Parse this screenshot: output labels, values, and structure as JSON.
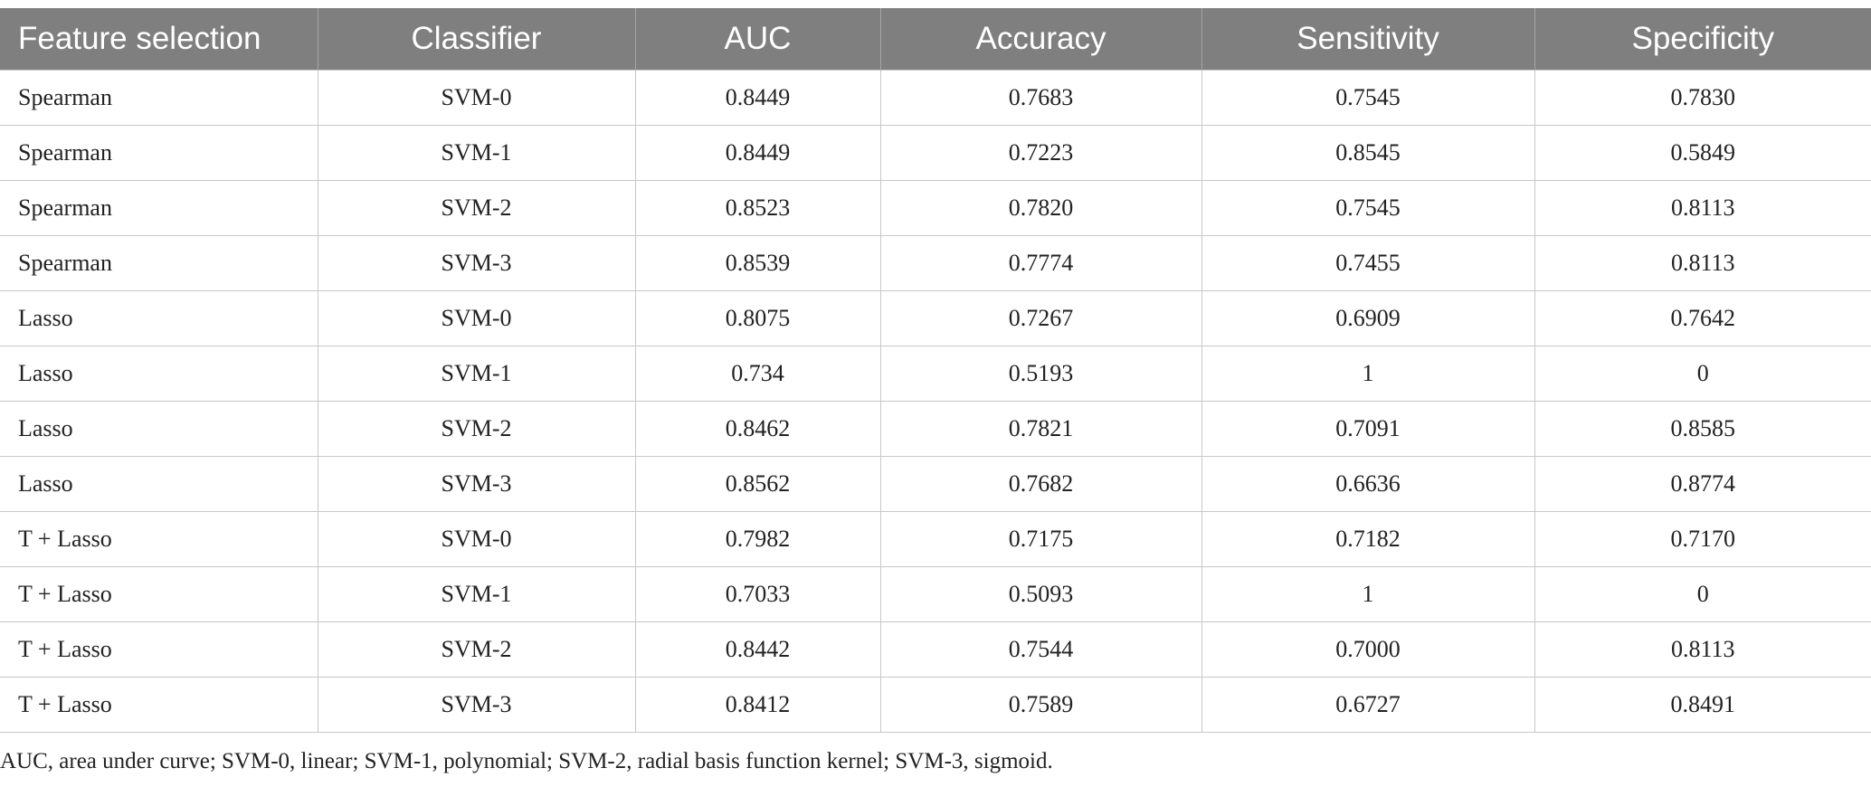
{
  "table": {
    "header": [
      "Feature selection",
      "Classifier",
      "AUC",
      "Accuracy",
      "Sensitivity",
      "Specificity"
    ],
    "rows": [
      [
        "Spearman",
        "SVM-0",
        "0.8449",
        "0.7683",
        "0.7545",
        "0.7830"
      ],
      [
        "Spearman",
        "SVM-1",
        "0.8449",
        "0.7223",
        "0.8545",
        "0.5849"
      ],
      [
        "Spearman",
        "SVM-2",
        "0.8523",
        "0.7820",
        "0.7545",
        "0.8113"
      ],
      [
        "Spearman",
        "SVM-3",
        "0.8539",
        "0.7774",
        "0.7455",
        "0.8113"
      ],
      [
        "Lasso",
        "SVM-0",
        "0.8075",
        "0.7267",
        "0.6909",
        "0.7642"
      ],
      [
        "Lasso",
        "SVM-1",
        "0.734",
        "0.5193",
        "1",
        "0"
      ],
      [
        "Lasso",
        "SVM-2",
        "0.8462",
        "0.7821",
        "0.7091",
        "0.8585"
      ],
      [
        "Lasso",
        "SVM-3",
        "0.8562",
        "0.7682",
        "0.6636",
        "0.8774"
      ],
      [
        "T + Lasso",
        "SVM-0",
        "0.7982",
        "0.7175",
        "0.7182",
        "0.7170"
      ],
      [
        "T + Lasso",
        "SVM-1",
        "0.7033",
        "0.5093",
        "1",
        "0"
      ],
      [
        "T + Lasso",
        "SVM-2",
        "0.8442",
        "0.7544",
        "0.7000",
        "0.8113"
      ],
      [
        "T + Lasso",
        "SVM-3",
        "0.8412",
        "0.7589",
        "0.6727",
        "0.8491"
      ]
    ],
    "footnote": "AUC, area under curve; SVM-0, linear; SVM-1, polynomial; SVM-2, radial basis function kernel; SVM-3, sigmoid."
  }
}
